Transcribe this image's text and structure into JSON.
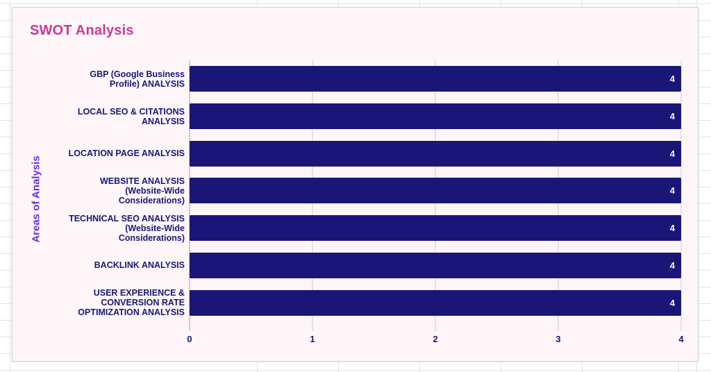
{
  "colors": {
    "sheet_line": "#e4e1e2",
    "chart_background": "#fdf5f7",
    "chart_border": "#d6d0d2",
    "bar": "#1a1678",
    "navy_text": "#181878",
    "title_pink": "#c73a99",
    "axis_title_purple": "#6b2ee0",
    "gridline": "#cfcbd0",
    "axis_line": "#a5a1a4",
    "value_label": "#ffffff"
  },
  "chart": {
    "title": "SWOT Analysis",
    "y_axis_title": "Areas of Analysis"
  },
  "chart_data": {
    "type": "bar",
    "orientation": "horizontal",
    "title": "SWOT Analysis",
    "ylabel": "Areas of Analysis",
    "xlabel": "",
    "categories": [
      "GBP (Google Business\nProfile) ANALYSIS",
      "LOCAL SEO & CITATIONS\nANALYSIS",
      "LOCATION PAGE ANALYSIS",
      "WEBSITE ANALYSIS\n(Website-Wide\nConsiderations)",
      "TECHNICAL SEO ANALYSIS\n(Website-Wide\nConsiderations)",
      "BACKLINK ANALYSIS",
      "USER EXPERIENCE &\nCONVERSION RATE\nOPTIMIZATION ANALYSIS"
    ],
    "values": [
      4,
      4,
      4,
      4,
      4,
      4,
      4
    ],
    "value_labels": [
      "4",
      "4",
      "4",
      "4",
      "4",
      "4",
      "4"
    ],
    "x_ticks": [
      0,
      1,
      2,
      3,
      4
    ],
    "xlim": [
      0,
      4
    ],
    "grid": true,
    "legend": false
  }
}
